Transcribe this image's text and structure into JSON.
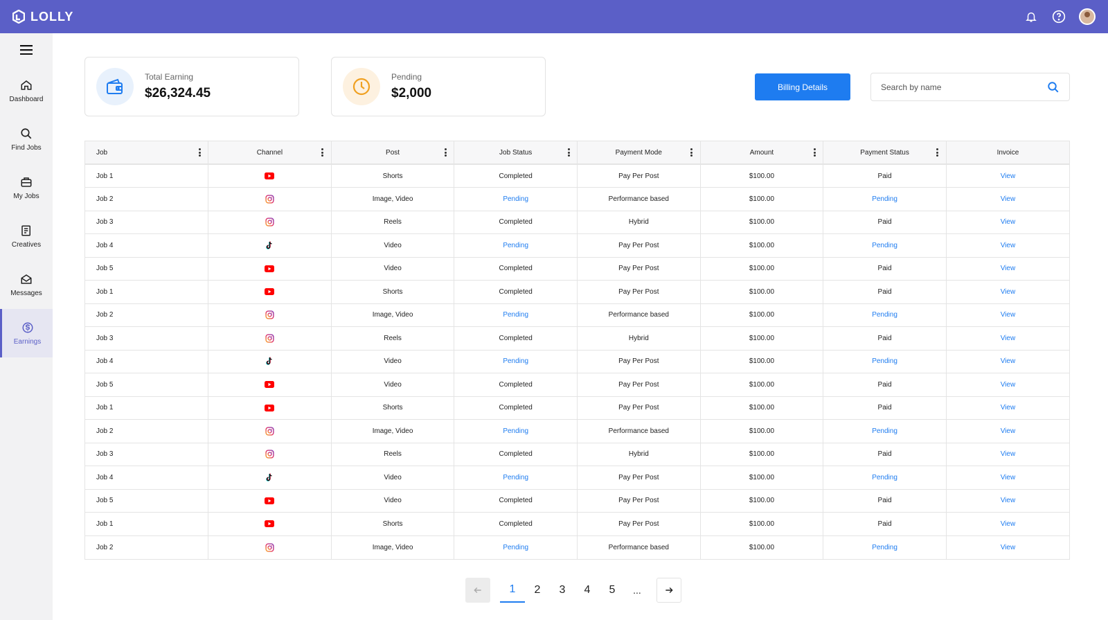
{
  "app": {
    "name": "LOLLY"
  },
  "sidebar": {
    "items": [
      {
        "label": "Dashboard",
        "icon": "home-icon"
      },
      {
        "label": "Find Jobs",
        "icon": "search-icon"
      },
      {
        "label": "My Jobs",
        "icon": "briefcase-icon"
      },
      {
        "label": "Creatives",
        "icon": "creatives-icon"
      },
      {
        "label": "Messages",
        "icon": "envelope-icon"
      },
      {
        "label": "Earnings",
        "icon": "dollar-icon",
        "active": true
      }
    ]
  },
  "summary": {
    "total": {
      "label": "Total Earning",
      "value": "$26,324.45"
    },
    "pending": {
      "label": "Pending",
      "value": "$2,000"
    }
  },
  "toolbar": {
    "billing_label": "Billing Details",
    "search_placeholder": "Search by name"
  },
  "table": {
    "headers": [
      "Job",
      "Channel",
      "Post",
      "Job Status",
      "Payment Mode",
      "Amount",
      "Payment Status",
      "Invoice"
    ],
    "rows": [
      {
        "job": "Job 1",
        "channel": "youtube",
        "post": "Shorts",
        "job_status": "Completed",
        "payment_mode": "Pay Per Post",
        "amount": "$100.00",
        "payment_status": "Paid",
        "invoice": "View"
      },
      {
        "job": "Job 2",
        "channel": "instagram",
        "post": "Image, Video",
        "job_status": "Pending",
        "payment_mode": "Performance based",
        "amount": "$100.00",
        "payment_status": "Pending",
        "invoice": "View"
      },
      {
        "job": "Job 3",
        "channel": "instagram",
        "post": "Reels",
        "job_status": "Completed",
        "payment_mode": "Hybrid",
        "amount": "$100.00",
        "payment_status": "Paid",
        "invoice": "View"
      },
      {
        "job": "Job 4",
        "channel": "tiktok",
        "post": "Video",
        "job_status": "Pending",
        "payment_mode": "Pay Per Post",
        "amount": "$100.00",
        "payment_status": "Pending",
        "invoice": "View"
      },
      {
        "job": "Job 5",
        "channel": "youtube",
        "post": "Video",
        "job_status": "Completed",
        "payment_mode": "Pay Per Post",
        "amount": "$100.00",
        "payment_status": "Paid",
        "invoice": "View"
      },
      {
        "job": "Job 1",
        "channel": "youtube",
        "post": "Shorts",
        "job_status": "Completed",
        "payment_mode": "Pay Per Post",
        "amount": "$100.00",
        "payment_status": "Paid",
        "invoice": "View"
      },
      {
        "job": "Job 2",
        "channel": "instagram",
        "post": "Image, Video",
        "job_status": "Pending",
        "payment_mode": "Performance based",
        "amount": "$100.00",
        "payment_status": "Pending",
        "invoice": "View"
      },
      {
        "job": "Job 3",
        "channel": "instagram",
        "post": "Reels",
        "job_status": "Completed",
        "payment_mode": "Hybrid",
        "amount": "$100.00",
        "payment_status": "Paid",
        "invoice": "View"
      },
      {
        "job": "Job 4",
        "channel": "tiktok",
        "post": "Video",
        "job_status": "Pending",
        "payment_mode": "Pay Per Post",
        "amount": "$100.00",
        "payment_status": "Pending",
        "invoice": "View"
      },
      {
        "job": "Job 5",
        "channel": "youtube",
        "post": "Video",
        "job_status": "Completed",
        "payment_mode": "Pay Per Post",
        "amount": "$100.00",
        "payment_status": "Paid",
        "invoice": "View"
      },
      {
        "job": "Job 1",
        "channel": "youtube",
        "post": "Shorts",
        "job_status": "Completed",
        "payment_mode": "Pay Per Post",
        "amount": "$100.00",
        "payment_status": "Paid",
        "invoice": "View"
      },
      {
        "job": "Job 2",
        "channel": "instagram",
        "post": "Image, Video",
        "job_status": "Pending",
        "payment_mode": "Performance based",
        "amount": "$100.00",
        "payment_status": "Pending",
        "invoice": "View"
      },
      {
        "job": "Job 3",
        "channel": "instagram",
        "post": "Reels",
        "job_status": "Completed",
        "payment_mode": "Hybrid",
        "amount": "$100.00",
        "payment_status": "Paid",
        "invoice": "View"
      },
      {
        "job": "Job 4",
        "channel": "tiktok",
        "post": "Video",
        "job_status": "Pending",
        "payment_mode": "Pay Per Post",
        "amount": "$100.00",
        "payment_status": "Pending",
        "invoice": "View"
      },
      {
        "job": "Job 5",
        "channel": "youtube",
        "post": "Video",
        "job_status": "Completed",
        "payment_mode": "Pay Per Post",
        "amount": "$100.00",
        "payment_status": "Paid",
        "invoice": "View"
      },
      {
        "job": "Job 1",
        "channel": "youtube",
        "post": "Shorts",
        "job_status": "Completed",
        "payment_mode": "Pay Per Post",
        "amount": "$100.00",
        "payment_status": "Paid",
        "invoice": "View"
      },
      {
        "job": "Job 2",
        "channel": "instagram",
        "post": "Image, Video",
        "job_status": "Pending",
        "payment_mode": "Performance based",
        "amount": "$100.00",
        "payment_status": "Pending",
        "invoice": "View"
      }
    ]
  },
  "pagination": {
    "pages": [
      "1",
      "2",
      "3",
      "4",
      "5"
    ],
    "current": "1",
    "ellipsis": "..."
  },
  "colors": {
    "header": "#5b5fc7",
    "accent": "#1e7cf0",
    "pending": "#1e7cf0",
    "youtube": "#ff0000",
    "instagram": "#d6249f"
  }
}
